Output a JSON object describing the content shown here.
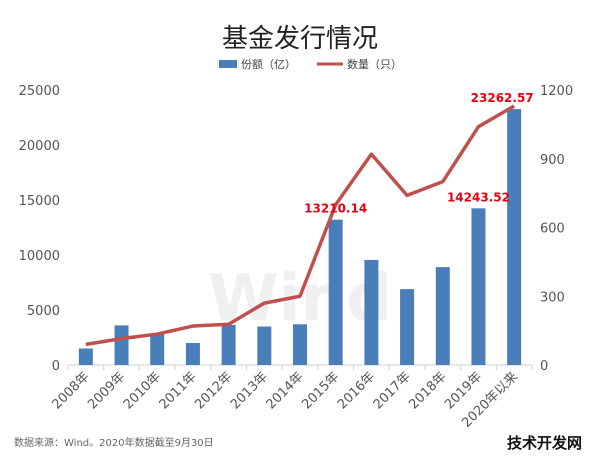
{
  "chart_data": {
    "type": "bar",
    "title": "基金发行情况",
    "categories": [
      "2008年",
      "2009年",
      "2010年",
      "2011年",
      "2012年",
      "2013年",
      "2014年",
      "2015年",
      "2016年",
      "2017年",
      "2018年",
      "2019年",
      "2020年以来"
    ],
    "series": [
      {
        "name": "份额（亿）",
        "type": "bar",
        "axis": "left",
        "values": [
          1500,
          3600,
          2800,
          2000,
          3650,
          3500,
          3700,
          13210.14,
          9550,
          6900,
          8900,
          14243.52,
          23262.57
        ]
      },
      {
        "name": "数量（只）",
        "type": "line",
        "axis": "right",
        "values": [
          90,
          115,
          135,
          170,
          178,
          270,
          300,
          700,
          920,
          740,
          800,
          1040,
          1130
        ]
      }
    ],
    "ylim_left": [
      0,
      25000
    ],
    "yticks_left": [
      "0",
      "5000",
      "10000",
      "15000",
      "20000",
      "25000"
    ],
    "ylim_right": [
      0,
      1200
    ],
    "yticks_right": [
      "0",
      "300",
      "600",
      "900",
      "1200"
    ],
    "annotations": [
      {
        "index": 7,
        "text": "13210.14"
      },
      {
        "index": 11,
        "text": "14243.52"
      },
      {
        "index": 12,
        "text": "23262.57"
      }
    ],
    "legend_position": "top-center",
    "grid": false,
    "colors": {
      "bar": "#4a7ebb",
      "line": "#c0504d",
      "annotation": "#e60012"
    }
  },
  "watermark": "Wind",
  "source_note": "数据来源：Wind。2020年数据截至9月30日",
  "brand": "技术开发网"
}
